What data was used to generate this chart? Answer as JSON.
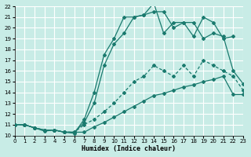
{
  "xlabel": "Humidex (Indice chaleur)",
  "xlim": [
    0,
    23
  ],
  "ylim": [
    10,
    22
  ],
  "xticks": [
    0,
    1,
    2,
    3,
    4,
    5,
    6,
    7,
    8,
    9,
    10,
    11,
    12,
    13,
    14,
    15,
    16,
    17,
    18,
    19,
    20,
    21,
    22,
    23
  ],
  "yticks": [
    10,
    11,
    12,
    13,
    14,
    15,
    16,
    17,
    18,
    19,
    20,
    21,
    22
  ],
  "bg_color": "#c8ece6",
  "grid_color": "#ffffff",
  "line_color": "#1a7a6e",
  "line1_x": [
    0,
    1,
    2,
    3,
    4,
    5,
    6,
    7,
    8,
    9,
    10,
    11,
    12,
    13,
    14,
    15,
    16,
    17,
    18,
    19,
    20,
    21,
    22,
    23
  ],
  "line1_y": [
    11,
    11,
    10.7,
    10.5,
    10.5,
    10.3,
    10.3,
    10.3,
    10.8,
    11.2,
    11.7,
    12.2,
    12.7,
    13.2,
    13.7,
    13.9,
    14.2,
    14.5,
    14.7,
    15.0,
    15.2,
    15.5,
    13.8,
    13.8
  ],
  "line2_x": [
    0,
    1,
    2,
    3,
    4,
    5,
    6,
    7,
    8,
    9,
    10,
    11,
    12,
    13,
    14,
    15,
    16,
    17,
    18,
    19,
    20,
    21,
    22,
    23
  ],
  "line2_y": [
    11,
    11,
    10.7,
    10.5,
    10.5,
    10.3,
    10.3,
    11.0,
    11.5,
    12.2,
    13.0,
    14.0,
    15.0,
    15.5,
    16.5,
    16.0,
    15.5,
    16.5,
    15.5,
    17.0,
    16.5,
    16.0,
    15.5,
    14.2
  ],
  "line3_x": [
    0,
    1,
    2,
    3,
    4,
    5,
    6,
    7,
    8,
    9,
    10,
    11,
    12,
    13,
    14,
    15,
    16,
    17,
    18,
    19,
    20,
    21,
    22
  ],
  "line3_y": [
    11,
    11,
    10.7,
    10.5,
    10.5,
    10.3,
    10.2,
    11.5,
    14.0,
    17.5,
    19.0,
    21.0,
    21.0,
    21.2,
    22.3,
    19.5,
    20.5,
    20.5,
    19.2,
    21.0,
    20.5,
    19.0,
    19.2
  ],
  "line4_x": [
    0,
    1,
    2,
    3,
    4,
    5,
    6,
    7,
    8,
    9,
    10,
    11,
    12,
    13,
    14,
    15,
    16,
    17,
    18,
    19,
    20,
    21,
    22,
    23
  ],
  "line4_y": [
    11,
    11,
    10.7,
    10.4,
    10.5,
    10.3,
    10.3,
    11.2,
    13.0,
    16.5,
    18.5,
    19.5,
    21.0,
    21.2,
    21.5,
    21.5,
    20.0,
    20.5,
    20.5,
    19.0,
    19.5,
    19.2,
    16.0,
    14.8
  ]
}
